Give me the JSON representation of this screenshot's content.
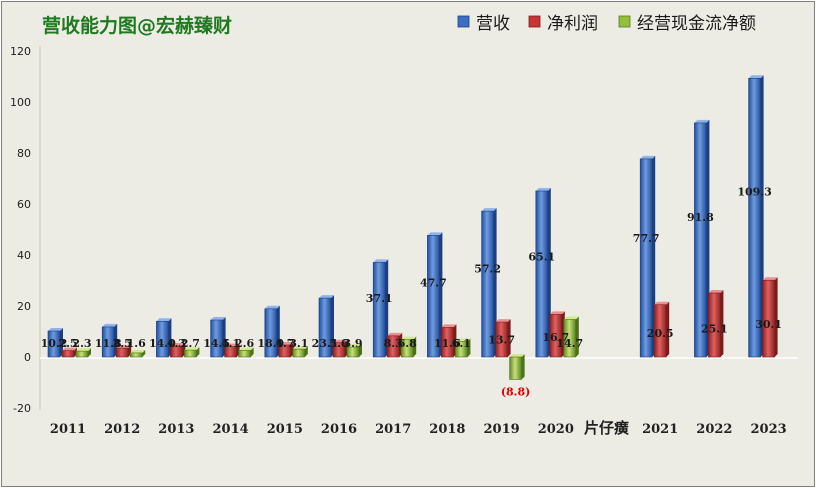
{
  "chart_data": {
    "type": "bar",
    "title": "营收能力图@宏赫臻财",
    "categories": [
      "2011",
      "2012",
      "2013",
      "2014",
      "2015",
      "2016",
      "2017",
      "2018",
      "2019",
      "2020",
      "2021",
      "2022",
      "2023"
    ],
    "series": [
      {
        "name": "营收",
        "color": "#3b6fc4",
        "values": [
          10.2,
          11.8,
          14.0,
          14.5,
          18.9,
          23.1,
          37.1,
          47.7,
          57.2,
          65.1,
          77.7,
          91.8,
          109.3
        ]
      },
      {
        "name": "净利润",
        "color": "#c93434",
        "values": [
          2.5,
          3.5,
          4.3,
          4.1,
          4.7,
          5.6,
          8.3,
          11.6,
          13.7,
          16.7,
          20.5,
          25.1,
          30.1
        ]
      },
      {
        "name": "经营现金流净额",
        "color": "#93bf3c",
        "values": [
          2.3,
          1.6,
          2.7,
          2.6,
          3.1,
          3.9,
          6.8,
          6.1,
          -8.8,
          14.7,
          null,
          null,
          null
        ]
      }
    ],
    "value_labels": {
      "营收": [
        "10.2",
        "11.8",
        "14.0",
        "14.5",
        "18.9",
        "23.1",
        "37.1",
        "47.7",
        "57.2",
        "65.1",
        "77.7",
        "91.8",
        "109.3"
      ],
      "净利润": [
        "2.5",
        "3.5",
        "4.3",
        "4.1",
        "4.7",
        "5.6",
        "8.3",
        "11.6",
        "13.7",
        "16.7",
        "20.5",
        "25.1",
        "30.1"
      ],
      "经营现金流净额": [
        "2.3",
        "1.6",
        "2.7",
        "2.6",
        "3.1",
        "3.9",
        "6.8",
        "6.1",
        "(8.8)",
        "14.7",
        "",
        "",
        ""
      ]
    },
    "ylim": [
      -20,
      120
    ],
    "yticks": [
      "-20",
      "0",
      "20",
      "40",
      "60",
      "80",
      "100",
      "120"
    ],
    "annotation": "片仔癀",
    "legend_position": "top-right",
    "grid": false,
    "bar_style": "3d"
  }
}
